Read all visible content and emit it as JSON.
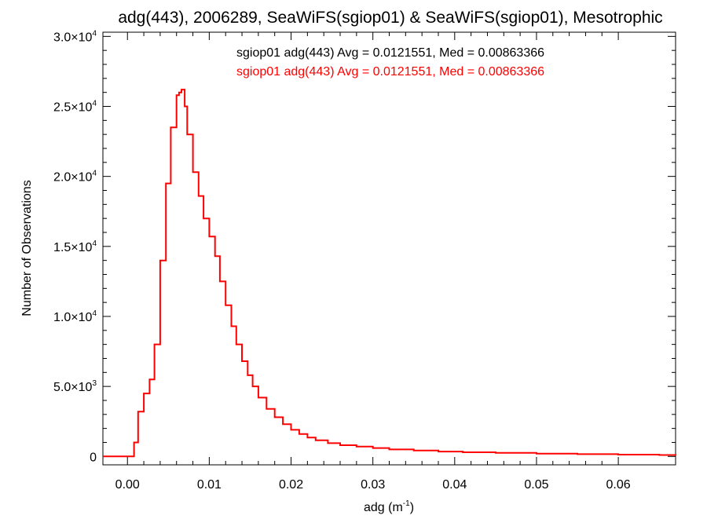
{
  "title": "adg(443), 2006289, SeaWiFS(sgiop01) & SeaWiFS(sgiop01), Mesotrophic",
  "colors": {
    "series_1": "#000000",
    "series_2": "#ff0000",
    "axis": "#000000"
  },
  "chart_data": {
    "type": "line",
    "step": true,
    "title": "adg(443), 2006289, SeaWiFS(sgiop01) & SeaWiFS(sgiop01), Mesotrophic",
    "xlabel": "adg (m",
    "xlabel_sup": "-1",
    "xlabel_tail": ")",
    "ylabel": "Number of Observations",
    "xlim": [
      -0.003,
      0.067
    ],
    "ylim": [
      -600,
      30300
    ],
    "grid": false,
    "legend_position": "top-center",
    "x_ticks": [
      {
        "value": 0.0,
        "label": "0.00"
      },
      {
        "value": 0.01,
        "label": "0.01"
      },
      {
        "value": 0.02,
        "label": "0.02"
      },
      {
        "value": 0.03,
        "label": "0.03"
      },
      {
        "value": 0.04,
        "label": "0.04"
      },
      {
        "value": 0.05,
        "label": "0.05"
      },
      {
        "value": 0.06,
        "label": "0.06"
      }
    ],
    "y_ticks": [
      {
        "value": 0,
        "mantissa": "0",
        "exp": ""
      },
      {
        "value": 5000,
        "mantissa": "5.0×10",
        "exp": "3"
      },
      {
        "value": 10000,
        "mantissa": "1.0×10",
        "exp": "4"
      },
      {
        "value": 15000,
        "mantissa": "1.5×10",
        "exp": "4"
      },
      {
        "value": 20000,
        "mantissa": "2.0×10",
        "exp": "4"
      },
      {
        "value": 25000,
        "mantissa": "2.5×10",
        "exp": "4"
      },
      {
        "value": 30000,
        "mantissa": "3.0×10",
        "exp": "4"
      }
    ],
    "annotations": [
      {
        "text": "sgiop01 adg(443) Avg = 0.0121551, Med = 0.00863366",
        "color": "#000000"
      },
      {
        "text": "sgiop01 adg(443) Avg = 0.0121551, Med = 0.00863366",
        "color": "#ff0000"
      }
    ],
    "series": [
      {
        "name": "sgiop01 adg(443)",
        "color": "#000000",
        "x": [],
        "y": []
      },
      {
        "name": "sgiop01 adg(443)",
        "color": "#ff0000",
        "x": [
          -0.003,
          0.0008,
          0.0013,
          0.002,
          0.0027,
          0.0033,
          0.004,
          0.0047,
          0.0053,
          0.006,
          0.0063,
          0.0066,
          0.007,
          0.0073,
          0.008,
          0.0087,
          0.0093,
          0.01,
          0.0107,
          0.0113,
          0.012,
          0.0127,
          0.0133,
          0.014,
          0.0147,
          0.0153,
          0.016,
          0.017,
          0.018,
          0.019,
          0.02,
          0.021,
          0.022,
          0.023,
          0.0245,
          0.026,
          0.028,
          0.03,
          0.032,
          0.035,
          0.038,
          0.041,
          0.045,
          0.05,
          0.055,
          0.06,
          0.065,
          0.067
        ],
        "y": [
          0,
          1000,
          3200,
          4500,
          5500,
          8000,
          14000,
          19500,
          23500,
          25800,
          26000,
          26200,
          25000,
          23000,
          20300,
          18600,
          17000,
          15700,
          14300,
          12500,
          10800,
          9300,
          8000,
          6800,
          5800,
          5000,
          4200,
          3400,
          2800,
          2300,
          1900,
          1600,
          1350,
          1150,
          950,
          800,
          700,
          600,
          500,
          420,
          350,
          300,
          250,
          200,
          160,
          130,
          100,
          80
        ]
      }
    ]
  }
}
